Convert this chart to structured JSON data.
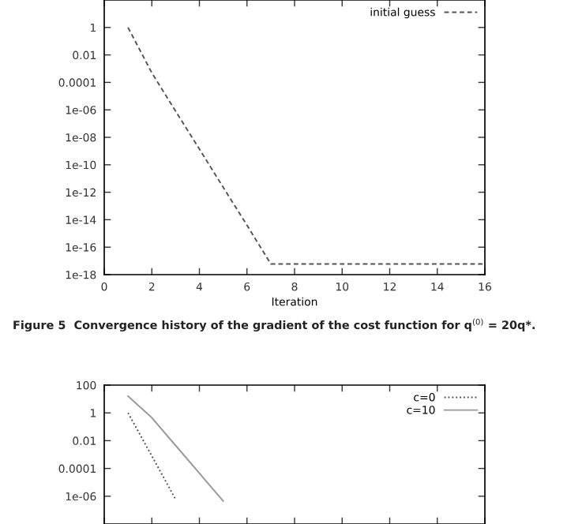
{
  "chart_data": [
    {
      "type": "line",
      "log": "y",
      "xlabel": "Iteration",
      "xlim": [
        0,
        16
      ],
      "xticks": [
        0,
        2,
        4,
        6,
        8,
        10,
        12,
        14,
        16
      ],
      "ylim": [
        1e-18,
        100
      ],
      "yticks": [
        1,
        0.01,
        0.0001,
        1e-06,
        1e-08,
        1e-10,
        1e-12,
        1e-14,
        1e-16,
        1e-18
      ],
      "grid": false,
      "legend": "top right",
      "marker": "none",
      "x": [
        1,
        2,
        3,
        4,
        5,
        6,
        7,
        8,
        9,
        10,
        11,
        12,
        13,
        14,
        15,
        16
      ],
      "series": [
        {
          "name": "initial guess",
          "color": "#555555",
          "line_style": "dashed",
          "values": [
            1,
            0.0005,
            8e-07,
            1.4e-09,
            2.3e-12,
            4e-15,
            6e-18,
            6e-18,
            6e-18,
            6e-18,
            6e-18,
            6e-18,
            6e-18,
            6e-18,
            6e-18,
            6e-18
          ]
        }
      ],
      "annotations": [
        "Figure 5  Convergence history of the gradient of the cost function for q$^{(0)}$ = 20q*."
      ]
    },
    {
      "type": "line",
      "log": "y",
      "xlim": [
        0,
        16
      ],
      "xticks": [
        {
          "value": 0,
          "label": null
        },
        {
          "value": 2,
          "label": null
        },
        {
          "value": 4,
          "label": null
        },
        {
          "value": 6,
          "label": null
        },
        {
          "value": 8,
          "label": null
        },
        {
          "value": 10,
          "label": null
        },
        {
          "value": 12,
          "label": null
        },
        {
          "value": 14,
          "label": null
        },
        {
          "value": 16,
          "label": null
        }
      ],
      "ylim": [
        1e-08,
        100
      ],
      "yticks": [
        100,
        1,
        0.01,
        0.0001,
        1e-06
      ],
      "tick_labels": "y",
      "grid": false,
      "legend": "top right",
      "marker": "none",
      "series": [
        {
          "name": "c=0",
          "color": "#555555",
          "line_style": "dotted",
          "x": [
            1,
            2,
            3
          ],
          "values": [
            1,
            0.0008,
            6e-07
          ]
        },
        {
          "name": "c=10",
          "color": "#999999",
          "line_style": "solid",
          "x": [
            1,
            2,
            3,
            4,
            5
          ],
          "values": [
            16,
            0.45,
            0.0045,
            4.5e-05,
            4.5e-07
          ]
        }
      ]
    }
  ]
}
